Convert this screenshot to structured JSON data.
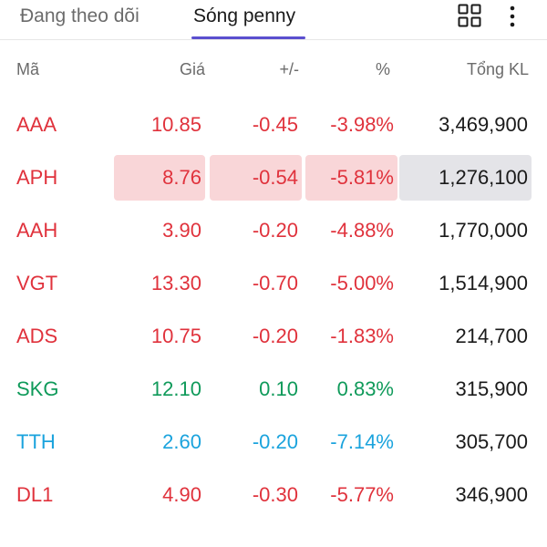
{
  "tabs": [
    {
      "label": "Đang theo dõi",
      "active": false
    },
    {
      "label": "Sóng penny",
      "active": true
    }
  ],
  "icons": {
    "grid": "grid-view-icon",
    "more": "more-vertical-icon"
  },
  "colors": {
    "accent": "#5b4fcf",
    "down": "#e0323c",
    "up": "#0f9a5a",
    "floor": "#1aa3dd",
    "highlight": "#f9d6d8"
  },
  "columns": {
    "symbol": "Mã",
    "price": "Giá",
    "change": "+/-",
    "percent": "%",
    "volume": "Tổng KL"
  },
  "rows": [
    {
      "symbol": "AAA",
      "price": "10.85",
      "change": "-0.45",
      "percent": "-3.98%",
      "volume": "3,469,900",
      "trend": "down",
      "highlighted": false
    },
    {
      "symbol": "APH",
      "price": "8.76",
      "change": "-0.54",
      "percent": "-5.81%",
      "volume": "1,276,100",
      "trend": "down",
      "highlighted": true
    },
    {
      "symbol": "AAH",
      "price": "3.90",
      "change": "-0.20",
      "percent": "-4.88%",
      "volume": "1,770,000",
      "trend": "down",
      "highlighted": false
    },
    {
      "symbol": "VGT",
      "price": "13.30",
      "change": "-0.70",
      "percent": "-5.00%",
      "volume": "1,514,900",
      "trend": "down",
      "highlighted": false
    },
    {
      "symbol": "ADS",
      "price": "10.75",
      "change": "-0.20",
      "percent": "-1.83%",
      "volume": "214,700",
      "trend": "down",
      "highlighted": false
    },
    {
      "symbol": "SKG",
      "price": "12.10",
      "change": "0.10",
      "percent": "0.83%",
      "volume": "315,900",
      "trend": "up",
      "highlighted": false
    },
    {
      "symbol": "TTH",
      "price": "2.60",
      "change": "-0.20",
      "percent": "-7.14%",
      "volume": "305,700",
      "trend": "floor",
      "highlighted": false
    },
    {
      "symbol": "DL1",
      "price": "4.90",
      "change": "-0.30",
      "percent": "-5.77%",
      "volume": "346,900",
      "trend": "down",
      "highlighted": false
    }
  ]
}
